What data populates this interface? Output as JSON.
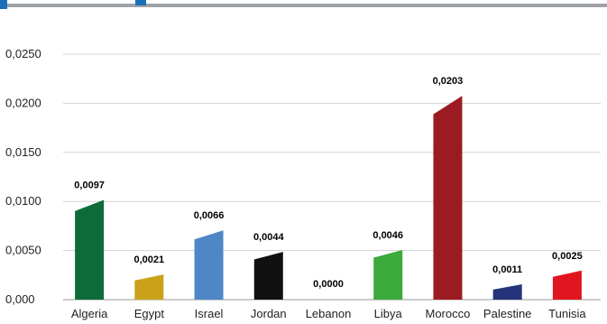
{
  "chart_data": {
    "type": "bar",
    "title": "",
    "xlabel": "",
    "ylabel": "",
    "ylim": [
      0,
      0.025
    ],
    "yticks": [
      "0,000",
      "0,0050",
      "0,0100",
      "0,0150",
      "0,0200",
      "0,0250"
    ],
    "grid": true,
    "categories": [
      "Algeria",
      "Egypt",
      "Israel",
      "Jordan",
      "Lebanon",
      "Libya",
      "Morocco",
      "Palestine",
      "Tunisia"
    ],
    "values": [
      0.0097,
      0.0021,
      0.0066,
      0.0044,
      0.0,
      0.0046,
      0.0203,
      0.0011,
      0.0025
    ],
    "data_labels": [
      "0,0097",
      "0,0021",
      "0,0066",
      "0,0044",
      "0,0000",
      "0,0046",
      "0,0203",
      "0,0011",
      "0,0025"
    ],
    "colors": [
      "#0d6b3a",
      "#c9a21a",
      "#4f86c6",
      "#111111",
      "#9a9a9a",
      "#3aaa3a",
      "#9b1b22",
      "#25347a",
      "#e0151f"
    ]
  }
}
